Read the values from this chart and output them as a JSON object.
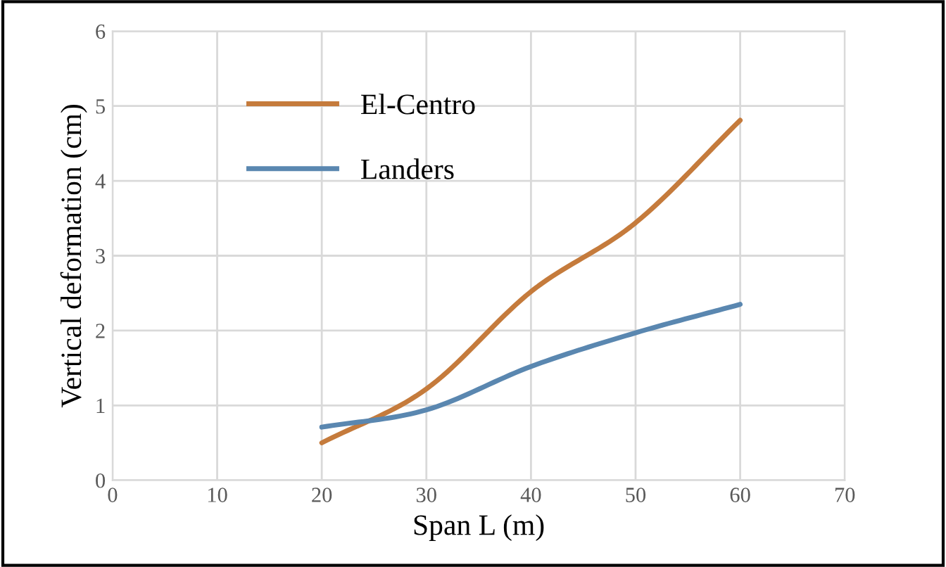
{
  "chart_data": {
    "type": "line",
    "xlabel": "Span L (m)",
    "ylabel": "Vertical deformation (cm)",
    "x": [
      20,
      30,
      40,
      50,
      60
    ],
    "series": [
      {
        "name": "El-Centro",
        "color": "#c57b3c",
        "values": [
          0.5,
          1.22,
          2.52,
          3.44,
          4.81
        ]
      },
      {
        "name": "Landers",
        "color": "#5a87b0",
        "values": [
          0.71,
          0.94,
          1.52,
          1.97,
          2.35
        ]
      }
    ],
    "xlim": [
      0,
      70
    ],
    "xticks": [
      0,
      10,
      20,
      30,
      40,
      50,
      60,
      70
    ],
    "ylim": [
      0,
      6
    ],
    "yticks": [
      0,
      1,
      2,
      3,
      4,
      5,
      6
    ],
    "grid": true,
    "legend": "top left",
    "marker": "none",
    "line_style": "solid"
  }
}
